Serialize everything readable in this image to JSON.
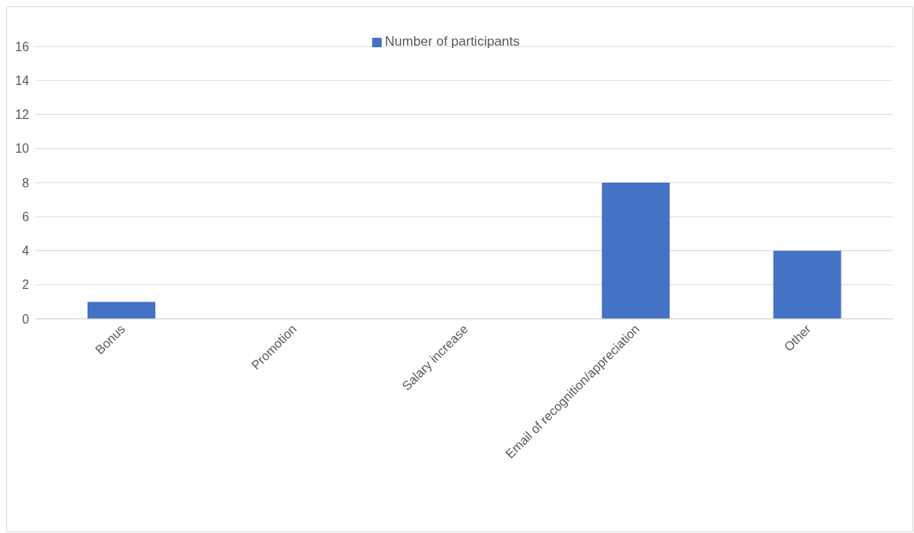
{
  "chart_data": {
    "type": "bar",
    "categories": [
      "Bonus",
      "Promotion",
      "Salary increase",
      "Email of recognition/appreciation",
      "Other"
    ],
    "series": [
      {
        "name": "Number of participants",
        "color": "#4472c4",
        "values": [
          1,
          0,
          0,
          8,
          4
        ]
      }
    ],
    "ylim": [
      0,
      16
    ],
    "yticks": [
      0,
      2,
      4,
      6,
      8,
      10,
      12,
      14,
      16
    ],
    "grid": "y",
    "legend": "top"
  }
}
